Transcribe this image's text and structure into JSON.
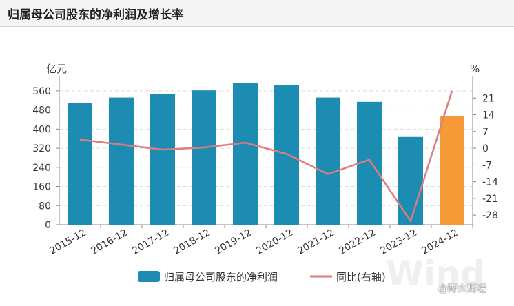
{
  "header": {
    "title": "归属母公司股东的净利润及增长率"
  },
  "chart_data": {
    "type": "bar",
    "title": "归属母公司股东的净利润及增长率",
    "categories": [
      "2015-12",
      "2016-12",
      "2017-12",
      "2018-12",
      "2019-12",
      "2020-12",
      "2021-12",
      "2022-12",
      "2023-12",
      "2024-12"
    ],
    "series": [
      {
        "name": "归属母公司股东的净利润",
        "type": "bar",
        "axis": "left",
        "values": [
          508,
          532,
          546,
          562,
          592,
          584,
          532,
          514,
          367,
          455
        ],
        "colors": [
          "#1c8cb2",
          "#1c8cb2",
          "#1c8cb2",
          "#1c8cb2",
          "#1c8cb2",
          "#1c8cb2",
          "#1c8cb2",
          "#1c8cb2",
          "#1c8cb2",
          "#f59a37"
        ]
      },
      {
        "name": "同比(右轴)",
        "type": "line",
        "axis": "right",
        "color": "#e07b7b",
        "values": [
          3.6,
          1.5,
          -0.6,
          0.3,
          2.3,
          -2.4,
          -10.8,
          -4.8,
          -30.5,
          24.0
        ]
      }
    ],
    "ylabel_left": "亿元",
    "ylabel_right": "%",
    "yticks_left": [
      "0",
      "80",
      "160",
      "240",
      "320",
      "400",
      "480",
      "560"
    ],
    "yticks_right": [
      "-28",
      "-21",
      "-14",
      "-7",
      "0",
      "7",
      "14",
      "21"
    ],
    "ylim_left": [
      0,
      600
    ],
    "ylim_right": [
      -32,
      28
    ],
    "grid": true,
    "legend_position": "bottom"
  },
  "watermark": "Wind",
  "brand": "@野火财经"
}
